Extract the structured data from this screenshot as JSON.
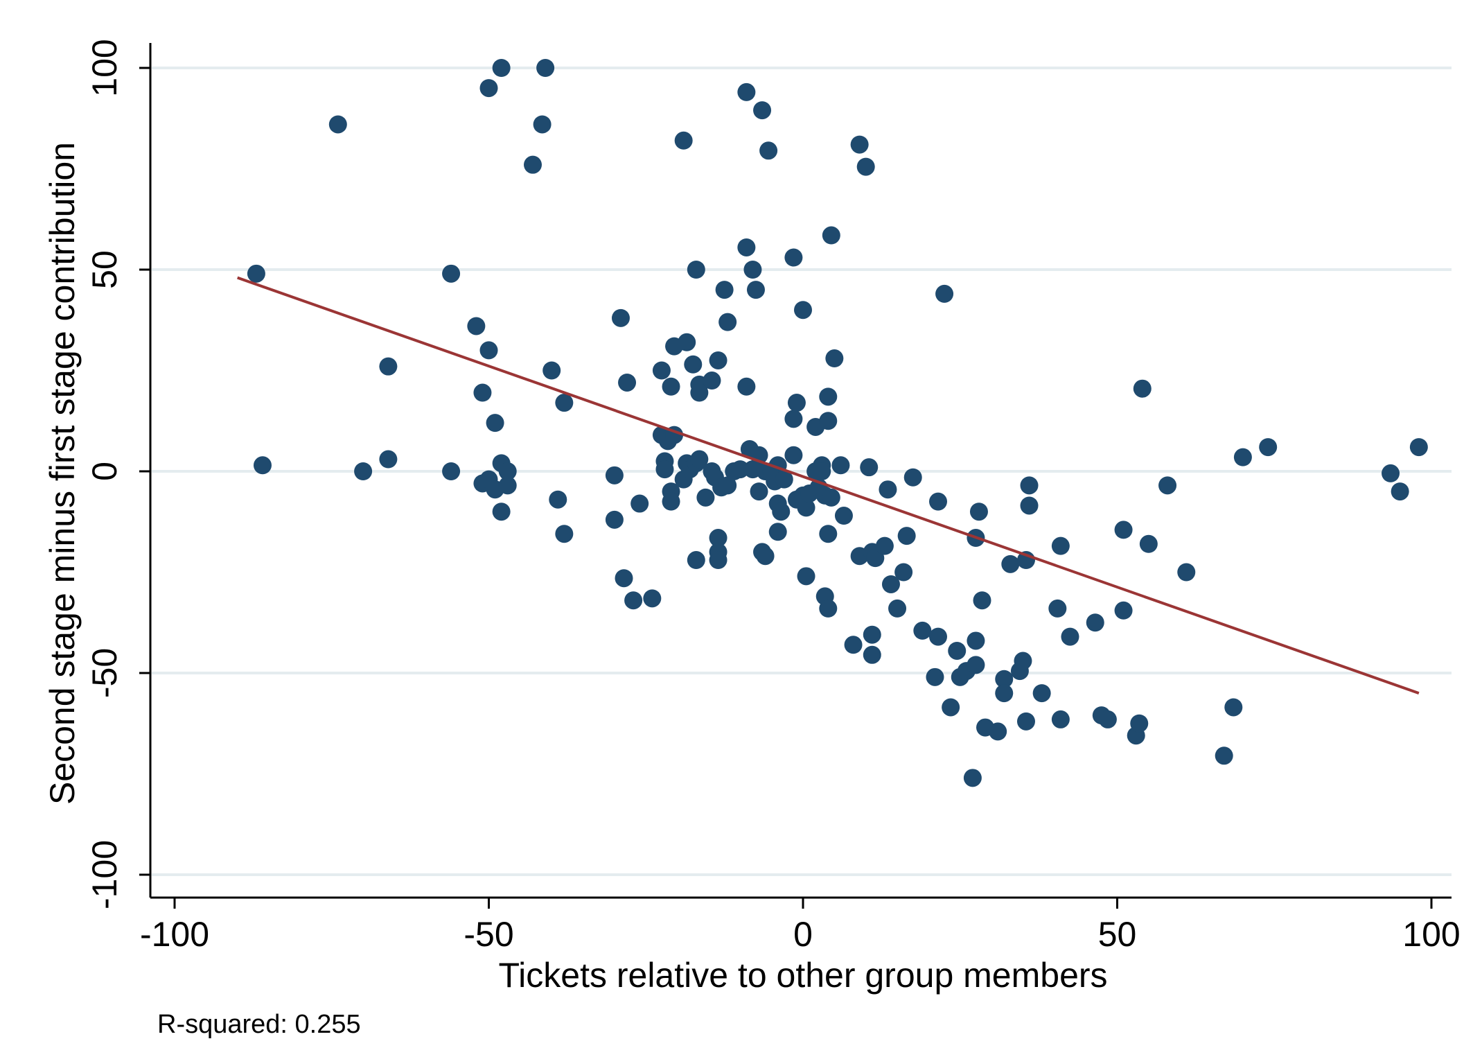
{
  "chart_data": {
    "type": "scatter",
    "title": "",
    "xlabel": "Tickets relative to other group members",
    "ylabel": "Second stage minus first stage contribution",
    "xlim": [
      -104,
      104
    ],
    "ylim": [
      -105,
      106
    ],
    "xticks": [
      -100,
      -50,
      0,
      50,
      100
    ],
    "yticks": [
      -100,
      -50,
      0,
      50,
      100
    ],
    "xtick_labels": [
      "-100",
      "-50",
      "0",
      "50",
      "100"
    ],
    "ytick_labels": [
      "-100",
      "-50",
      "0",
      "50",
      "100"
    ],
    "grid": "horizontal",
    "note": "R-squared: 0.255",
    "colors": {
      "points": "#1f4a6e",
      "fit_line": "#9b3535",
      "grid": "#e4ecef"
    },
    "fit_line": {
      "x": [
        -90,
        98
      ],
      "y": [
        48,
        -55
      ]
    },
    "points": [
      [
        -87,
        49
      ],
      [
        -86,
        1.5
      ],
      [
        -74,
        86
      ],
      [
        -70,
        0
      ],
      [
        -66,
        26
      ],
      [
        -66,
        3
      ],
      [
        -56,
        49
      ],
      [
        -56,
        0
      ],
      [
        -52,
        36
      ],
      [
        -51,
        19.5
      ],
      [
        -51,
        -3
      ],
      [
        -50,
        95
      ],
      [
        -50,
        30
      ],
      [
        -50,
        -2
      ],
      [
        -49,
        12
      ],
      [
        -49,
        -4.5
      ],
      [
        -48,
        100
      ],
      [
        -48,
        2
      ],
      [
        -48,
        -10
      ],
      [
        -47,
        -3.5
      ],
      [
        -47,
        0
      ],
      [
        -43,
        76
      ],
      [
        -41.5,
        86
      ],
      [
        -41,
        100
      ],
      [
        -40,
        25
      ],
      [
        -39,
        -7
      ],
      [
        -38,
        17
      ],
      [
        -38,
        -15.5
      ],
      [
        -30,
        -1
      ],
      [
        -30,
        -12
      ],
      [
        -29,
        38
      ],
      [
        -28.5,
        -26.5
      ],
      [
        -28,
        22
      ],
      [
        -27,
        -32
      ],
      [
        -26,
        -8
      ],
      [
        -24,
        -31.5
      ],
      [
        -22.5,
        25
      ],
      [
        -22.5,
        9
      ],
      [
        -22,
        2.5
      ],
      [
        -22,
        0.5
      ],
      [
        -21.5,
        7.5
      ],
      [
        -21,
        21
      ],
      [
        -21,
        -5
      ],
      [
        -21,
        -7.5
      ],
      [
        -20.5,
        9
      ],
      [
        -20.5,
        31
      ],
      [
        -19,
        82
      ],
      [
        -19,
        -2
      ],
      [
        -18.5,
        2
      ],
      [
        -18.5,
        32
      ],
      [
        -18,
        0.5
      ],
      [
        -17.5,
        26.5
      ],
      [
        -17,
        50
      ],
      [
        -17,
        2
      ],
      [
        -17,
        -22
      ],
      [
        -16.5,
        3
      ],
      [
        -16.5,
        21.5
      ],
      [
        -16.5,
        19.5
      ],
      [
        -15.5,
        -6.5
      ],
      [
        -14.5,
        22.5
      ],
      [
        -14.5,
        0
      ],
      [
        -14,
        -1.5
      ],
      [
        -13.5,
        27.5
      ],
      [
        -13.5,
        -16.5
      ],
      [
        -13.5,
        -20
      ],
      [
        -13.5,
        -22
      ],
      [
        -13,
        -4
      ],
      [
        -12.5,
        45
      ],
      [
        -12,
        37
      ],
      [
        -12,
        -3.5
      ],
      [
        -11,
        0
      ],
      [
        -10,
        0.5
      ],
      [
        -9,
        94
      ],
      [
        -9,
        21
      ],
      [
        -9,
        55.5
      ],
      [
        -8.5,
        5.5
      ],
      [
        -8,
        50
      ],
      [
        -8,
        0.5
      ],
      [
        -7.5,
        45
      ],
      [
        -7,
        4
      ],
      [
        -7,
        -5
      ],
      [
        -6.5,
        89.5
      ],
      [
        -6.5,
        -20
      ],
      [
        -6,
        -21
      ],
      [
        -6,
        0
      ],
      [
        -5.5,
        79.5
      ],
      [
        -5,
        0
      ],
      [
        -4.5,
        -2.5
      ],
      [
        -4,
        1.5
      ],
      [
        -4,
        -15
      ],
      [
        -4,
        -8
      ],
      [
        -3.5,
        -10
      ],
      [
        -3,
        -2
      ],
      [
        -1.5,
        53
      ],
      [
        -1.5,
        13
      ],
      [
        -1.5,
        4
      ],
      [
        -1,
        17
      ],
      [
        -1,
        -7
      ],
      [
        0,
        40
      ],
      [
        0,
        -6
      ],
      [
        0.5,
        -9
      ],
      [
        0.5,
        -26
      ],
      [
        1,
        -5.5
      ],
      [
        2,
        0
      ],
      [
        2,
        11
      ],
      [
        2.5,
        -4
      ],
      [
        3,
        1.5
      ],
      [
        3,
        0
      ],
      [
        3.5,
        -31
      ],
      [
        3.5,
        -6
      ],
      [
        4,
        -34
      ],
      [
        4,
        18.5
      ],
      [
        4,
        12.5
      ],
      [
        4,
        -15.5
      ],
      [
        4.5,
        58.5
      ],
      [
        4.5,
        -6.5
      ],
      [
        5,
        28
      ],
      [
        6,
        1.5
      ],
      [
        6.5,
        -11
      ],
      [
        8,
        -43
      ],
      [
        9,
        81
      ],
      [
        9,
        -21
      ],
      [
        10,
        75.5
      ],
      [
        10.5,
        1
      ],
      [
        11,
        -45.5
      ],
      [
        11,
        -40.5
      ],
      [
        11,
        -20
      ],
      [
        11.5,
        -21.5
      ],
      [
        13,
        -18.5
      ],
      [
        13.5,
        -4.5
      ],
      [
        14,
        -28
      ],
      [
        15,
        -34
      ],
      [
        16,
        -25
      ],
      [
        16.5,
        -16
      ],
      [
        17.5,
        -1.5
      ],
      [
        19,
        -39.5
      ],
      [
        21,
        -51
      ],
      [
        21.5,
        -41
      ],
      [
        21.5,
        -7.5
      ],
      [
        22.5,
        44
      ],
      [
        23.5,
        -58.5
      ],
      [
        24.5,
        -44.5
      ],
      [
        25,
        -51
      ],
      [
        26,
        -49.5
      ],
      [
        27,
        -76
      ],
      [
        27.5,
        -48
      ],
      [
        27.5,
        -42
      ],
      [
        27.5,
        -16.5
      ],
      [
        28,
        -10
      ],
      [
        28.5,
        -32
      ],
      [
        29,
        -63.5
      ],
      [
        31,
        -64.5
      ],
      [
        32,
        -51.5
      ],
      [
        32,
        -55
      ],
      [
        33,
        -23
      ],
      [
        34.5,
        -49.5
      ],
      [
        35,
        -47
      ],
      [
        35.5,
        -62
      ],
      [
        35.5,
        -22
      ],
      [
        36,
        -3.5
      ],
      [
        36,
        -8.5
      ],
      [
        38,
        -55
      ],
      [
        40.5,
        -34
      ],
      [
        41,
        -61.5
      ],
      [
        41,
        -18.5
      ],
      [
        42.5,
        -41
      ],
      [
        46.5,
        -37.5
      ],
      [
        47.5,
        -60.5
      ],
      [
        48.5,
        -61.5
      ],
      [
        51,
        -14.5
      ],
      [
        51,
        -34.5
      ],
      [
        53,
        -65.5
      ],
      [
        53.5,
        -62.5
      ],
      [
        54,
        20.5
      ],
      [
        55,
        -18
      ],
      [
        58,
        -3.5
      ],
      [
        61,
        -25
      ],
      [
        67,
        -70.5
      ],
      [
        68.5,
        -58.5
      ],
      [
        70,
        3.5
      ],
      [
        74,
        6
      ],
      [
        93.5,
        -0.5
      ],
      [
        95,
        -5
      ],
      [
        98,
        6
      ]
    ]
  }
}
